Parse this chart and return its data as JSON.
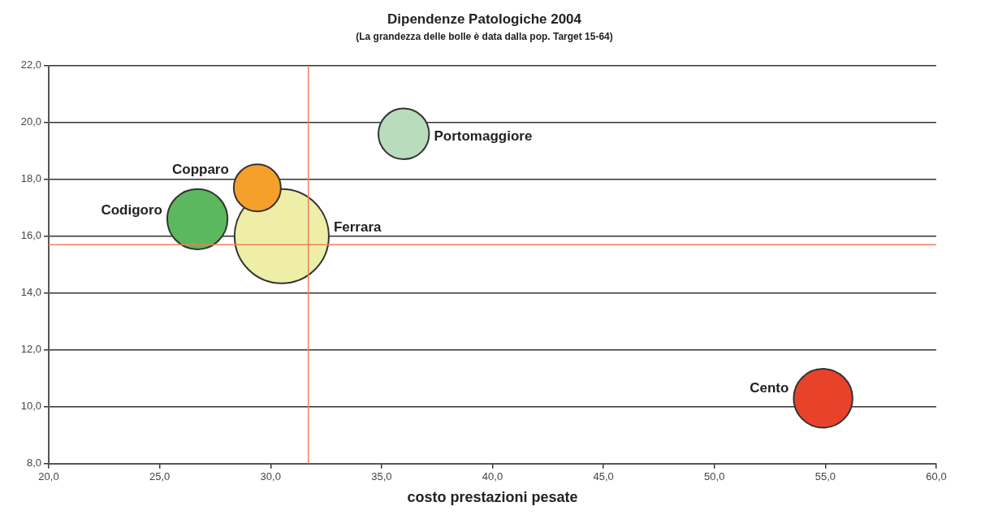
{
  "chart_data": {
    "type": "bubble",
    "title": "Dipendenze Patologiche 2004",
    "subtitle": "(La grandezza delle bolle è data dalla pop. Target 15-64)",
    "xlabel": "costo prestazioni pesate",
    "series": [
      {
        "name": "Codigoro",
        "color": "#5cb85f",
        "x": [
          26.7
        ],
        "values": [
          16.6
        ],
        "sizes": [
          0.41
        ]
      },
      {
        "name": "Copparo",
        "color": "#f5a02a",
        "x": [
          29.4
        ],
        "values": [
          17.7
        ],
        "sizes": [
          0.25
        ]
      },
      {
        "name": "Ferrara",
        "color": "#eeeea8",
        "x": [
          30.5
        ],
        "values": [
          16.0
        ],
        "sizes": [
          1
        ]
      },
      {
        "name": "Portomaggiore",
        "color": "#b8dcbc",
        "x": [
          36.0
        ],
        "values": [
          19.6
        ],
        "sizes": [
          0.29
        ]
      },
      {
        "name": "Cento",
        "color": "#e8432a",
        "x": [
          54.9
        ],
        "values": [
          10.3
        ],
        "sizes": [
          0.39
        ]
      }
    ],
    "xlim": [
      20,
      60
    ],
    "xticks": [
      {
        "value": 20,
        "label": "20,0"
      },
      {
        "value": 25,
        "label": "25,0"
      },
      {
        "value": 30,
        "label": "30,0"
      },
      {
        "value": 35,
        "label": "35,0"
      },
      {
        "value": 40,
        "label": "40,0"
      },
      {
        "value": 45,
        "label": "45,0"
      },
      {
        "value": 50,
        "label": "50,0"
      },
      {
        "value": 55,
        "label": "55,0"
      },
      {
        "value": 60,
        "label": "60,0"
      }
    ],
    "ylim": [
      8,
      22
    ],
    "yticks": [
      {
        "value": 8,
        "label": "8,0"
      },
      {
        "value": 10,
        "label": "10,0"
      },
      {
        "value": 12,
        "label": "12,0"
      },
      {
        "value": 14,
        "label": "14,0"
      },
      {
        "value": 16,
        "label": "16,0"
      },
      {
        "value": 18,
        "label": "18,0"
      },
      {
        "value": 20,
        "label": "20,0"
      },
      {
        "value": 22,
        "label": "22,0"
      }
    ],
    "ref_lines": [
      {
        "axis": "x",
        "value": 31.7,
        "color": "#f08060"
      },
      {
        "axis": "y",
        "value": 15.7,
        "color": "#f08060"
      }
    ],
    "grid": "y",
    "legend": false
  }
}
